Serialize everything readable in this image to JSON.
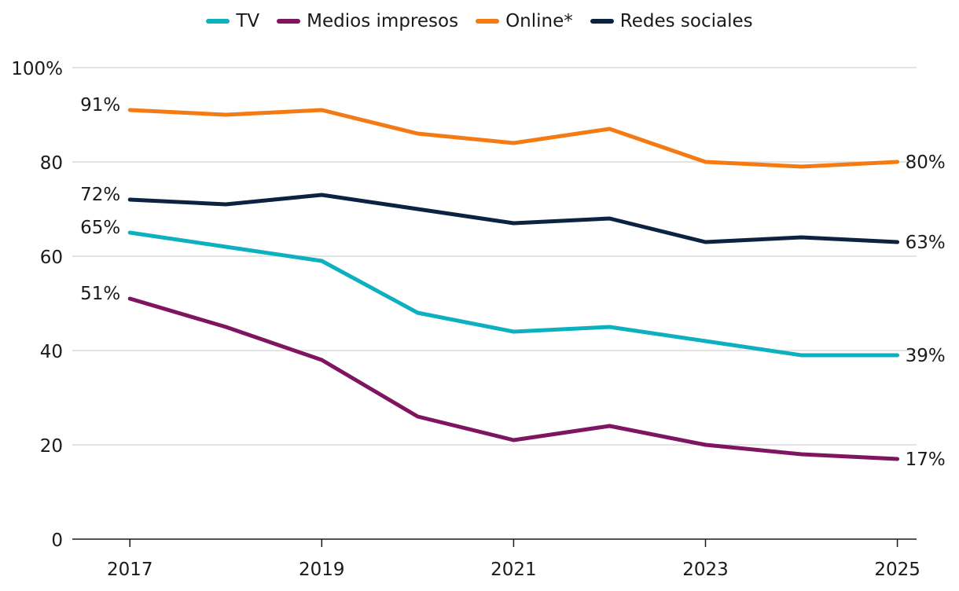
{
  "chart_data": {
    "type": "line",
    "title": "",
    "xlabel": "",
    "ylabel": "",
    "x": [
      2017,
      2018,
      2019,
      2020,
      2021,
      2022,
      2023,
      2024,
      2025
    ],
    "x_tick_labels": [
      "2017",
      "2019",
      "2021",
      "2023",
      "2025"
    ],
    "x_tick_values": [
      2017,
      2019,
      2021,
      2023,
      2025
    ],
    "xlim": [
      2016.4,
      2025.2
    ],
    "ylim": [
      0,
      100
    ],
    "y_tick_values": [
      0,
      20,
      40,
      60,
      80,
      100
    ],
    "y_tick_labels": [
      "0",
      "20",
      "40",
      "60",
      "80",
      "100%"
    ],
    "grid": true,
    "legend_position": "top-center",
    "series": [
      {
        "name": "TV",
        "color": "#0cb0bf",
        "values": [
          65,
          62,
          59,
          48,
          44,
          45,
          42,
          39,
          39
        ],
        "start_label": "65%",
        "end_label": "39%"
      },
      {
        "name": "Medios impresos",
        "color": "#7f1460",
        "values": [
          51,
          45,
          38,
          26,
          21,
          24,
          20,
          18,
          17
        ],
        "start_label": "51%",
        "end_label": "17%"
      },
      {
        "name": "Online*",
        "color": "#f47a14",
        "values": [
          91,
          90,
          91,
          86,
          84,
          87,
          80,
          79,
          80
        ],
        "start_label": "91%",
        "end_label": "80%"
      },
      {
        "name": "Redes sociales",
        "color": "#0b2240",
        "values": [
          72,
          71,
          73,
          70,
          67,
          68,
          63,
          64,
          63
        ],
        "start_label": "72%",
        "end_label": "63%"
      }
    ]
  }
}
